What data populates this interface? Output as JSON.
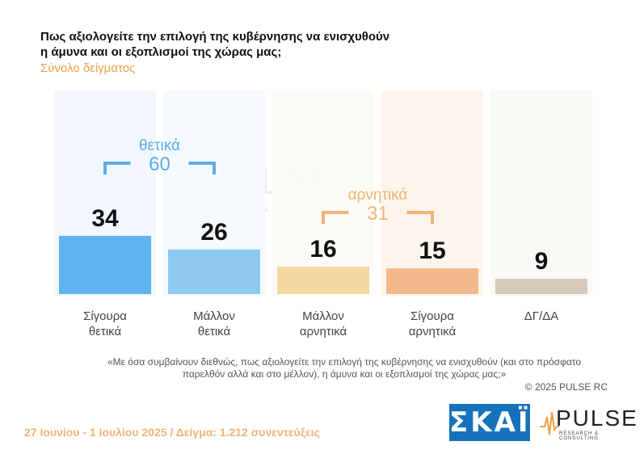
{
  "header": {
    "title_line1": "Πως αξιολογείτε την επιλογή της κυβέρνησης να ενισχυθούν",
    "title_line2": "η άμυνα και οι εξοπλισμοί της χώρας μας;",
    "subtitle": "Σύνολο δείγματος"
  },
  "watermark": {
    "name": "PULSE",
    "sub": "RESEARCH & CONSULTING"
  },
  "chart_data": {
    "type": "bar",
    "categories": [
      [
        "Σίγουρα",
        "θετικά"
      ],
      [
        "Μάλλον",
        "θετικά"
      ],
      [
        "Μάλλον",
        "αρνητικά"
      ],
      [
        "Σίγουρα",
        "αρνητικά"
      ],
      [
        "ΔΓ/ΔΑ"
      ]
    ],
    "values": [
      34,
      26,
      16,
      15,
      9
    ],
    "colors": [
      "#5fb3ef",
      "#8ec9f2",
      "#f3d9a2",
      "#f3b98a",
      "#d5cab9"
    ],
    "column_background_colors": [
      "#eef6fd",
      "#f3f9fe",
      "#fdfaf3",
      "#fdf3ea",
      "#faf8f5"
    ],
    "groups": [
      {
        "label": "θετικά",
        "total": "60",
        "color": "#5aaee8",
        "from": 0,
        "to": 1
      },
      {
        "label": "αρνητικά",
        "total": "31",
        "color": "#f0b477",
        "from": 2,
        "to": 3
      }
    ]
  },
  "note": {
    "line1": "«Με όσα συμβαίνουν διεθνώς, πως αξιολογείτε την επιλογή της κυβέρνησης να ενισχυθούν (και στο πρόσφατο",
    "line2": "παρελθόν αλλά και στο μέλλον), η άμυνα και οι εξοπλισμοί της χώρας μας;»",
    "copyright": "©  2025  PULSE RC"
  },
  "footer": {
    "text": "27 Ιουνίου - 1 Ιουλίου 2025  /  Δείγμα:  1.212 συνεντεύξεις"
  },
  "logos": {
    "skai": "ΣΚΑΪ",
    "pulse": "PULSE",
    "pulse_sub": "RESEARCH & CONSULTING"
  }
}
